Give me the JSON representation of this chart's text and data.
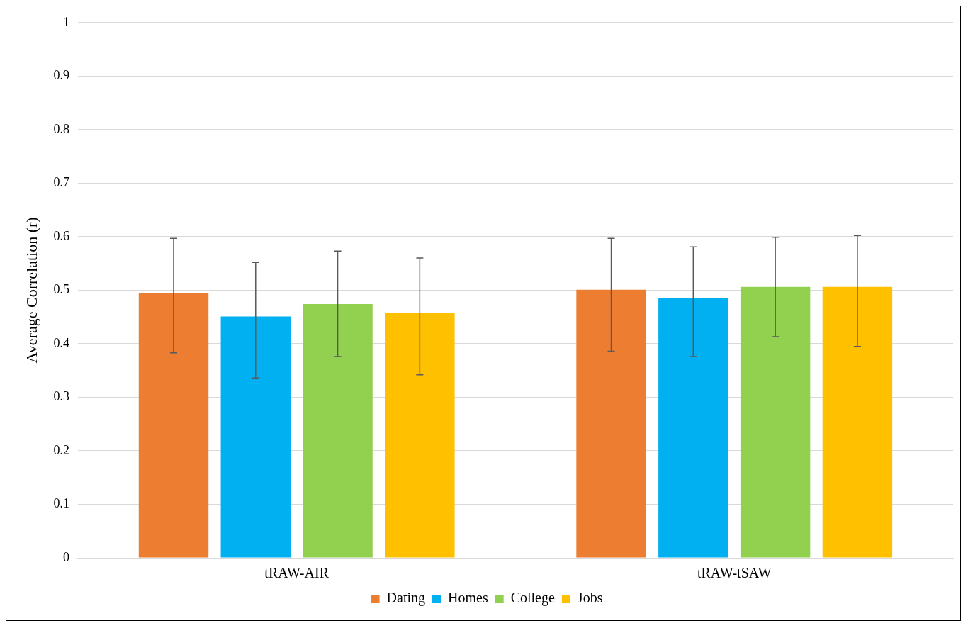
{
  "chart_data": {
    "type": "bar",
    "ylabel": "Average Correlation (r)",
    "categories": [
      "tRAW-AIR",
      "tRAW-tSAW"
    ],
    "series": [
      {
        "name": "Dating",
        "color": "#ed7d31",
        "values": [
          0.495,
          0.501
        ],
        "errors": [
          [
            0.383,
            0.597
          ],
          [
            0.386,
            0.597
          ]
        ]
      },
      {
        "name": "Homes",
        "color": "#00b0f0",
        "values": [
          0.451,
          0.485
        ],
        "errors": [
          [
            0.336,
            0.552
          ],
          [
            0.376,
            0.581
          ]
        ]
      },
      {
        "name": "College",
        "color": "#92d050",
        "values": [
          0.474,
          0.506
        ],
        "errors": [
          [
            0.376,
            0.573
          ],
          [
            0.413,
            0.599
          ]
        ]
      },
      {
        "name": "Jobs",
        "color": "#ffc000",
        "values": [
          0.458,
          0.506
        ],
        "errors": [
          [
            0.342,
            0.56
          ],
          [
            0.395,
            0.602
          ]
        ]
      }
    ],
    "ylim": [
      0,
      1
    ],
    "yticks": [
      0,
      0.1,
      0.2,
      0.3,
      0.4,
      0.5,
      0.6,
      0.7,
      0.8,
      0.9,
      1
    ],
    "grid": "y",
    "legend": "bottom"
  }
}
